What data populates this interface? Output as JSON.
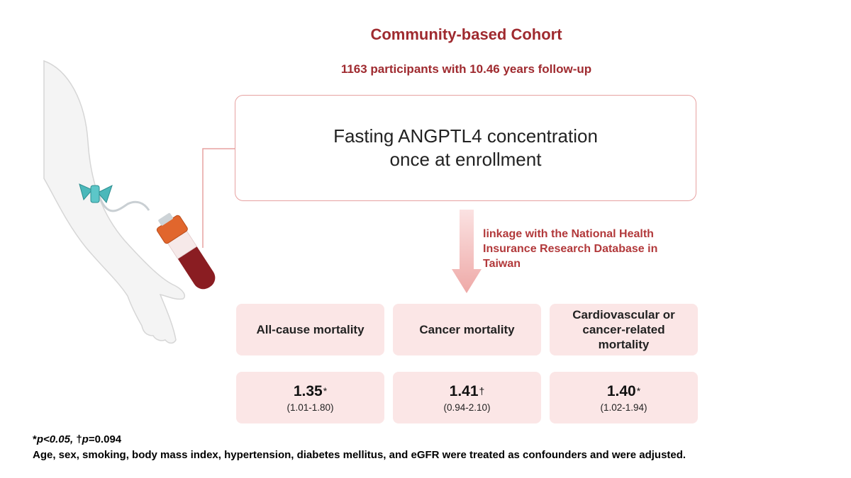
{
  "header": {
    "title": "Community-based Cohort",
    "subtitle": "1163 participants with 10.46 years follow-up"
  },
  "measurement": {
    "line1": "Fasting ANGPTL4 concentration",
    "line2": "once at enrollment"
  },
  "linkage": {
    "line1": "linkage with the National Health",
    "line2": "Insurance Research Database in",
    "line3": "Taiwan"
  },
  "outcomes": [
    {
      "label": [
        "All-cause mortality"
      ],
      "hr": "1.35",
      "mark": "*",
      "ci": "(1.01-1.80)"
    },
    {
      "label": [
        "Cancer mortality"
      ],
      "hr": "1.41",
      "mark": "†",
      "ci": "(0.94-2.10)"
    },
    {
      "label": [
        "Cardiovascular or",
        "cancer-related",
        "mortality"
      ],
      "hr": "1.40",
      "mark": "*",
      "ci": "(1.02-1.94)"
    }
  ],
  "footnotes": {
    "sig_star": "*",
    "sig_p1": "p",
    "sig_rest1": "<0.05, ",
    "sig_dagger": "†",
    "sig_p2": "p",
    "sig_rest2": "=0.094",
    "adjustment": "Age, sex, smoking, body mass index, hypertension, diabetes mellitus, and eGFR were treated as confounders and were adjusted."
  },
  "colors": {
    "accent": "#9f2a2f",
    "box_border": "#e7a2a1",
    "card_fill": "#fbe6e6",
    "tube_cap": "#e1662d",
    "blood": "#8a1d22",
    "butterfly": "#4bb8ba"
  },
  "icons": {
    "arm": "arm-illustration",
    "needle": "butterfly-needle-icon",
    "tube": "blood-tube-icon",
    "arrow": "down-arrow-icon"
  }
}
